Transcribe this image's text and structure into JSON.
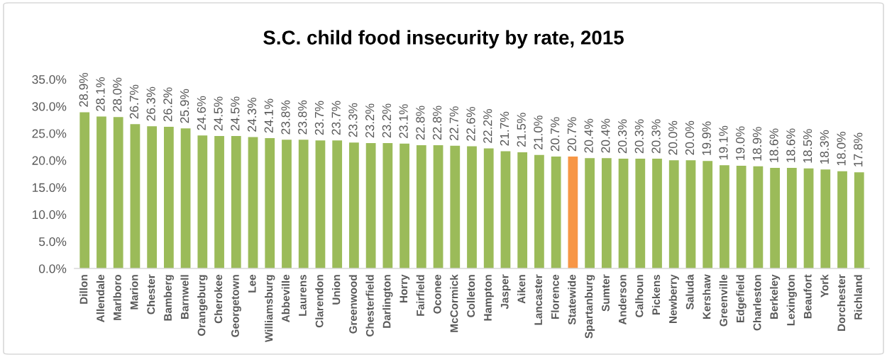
{
  "chart_data": {
    "type": "bar",
    "title": "S.C. child food insecurity by rate, 2015",
    "categories": [
      "Dillon",
      "Allendale",
      "Marlboro",
      "Marion",
      "Chester",
      "Bamberg",
      "Barnwell",
      "Orangeburg",
      "Cherokee",
      "Georgetown",
      "Lee",
      "Williamsburg",
      "Abbeville",
      "Laurens",
      "Clarendon",
      "Union",
      "Greenwood",
      "Chesterfield",
      "Darlington",
      "Horry",
      "Fairfield",
      "Oconee",
      "McCormick",
      "Colleton",
      "Hampton",
      "Jasper",
      "Aiken",
      "Lancaster",
      "Florence",
      "Statewide",
      "Spartanburg",
      "Sumter",
      "Anderson",
      "Calhoun",
      "Pickens",
      "Newberry",
      "Saluda",
      "Kershaw",
      "Greenville",
      "Edgefield",
      "Charleston",
      "Berkeley",
      "Lexington",
      "Beaufort",
      "York",
      "Dorchester",
      "Richland"
    ],
    "values": [
      28.9,
      28.1,
      28.0,
      26.7,
      26.3,
      26.2,
      25.9,
      24.6,
      24.5,
      24.5,
      24.3,
      24.1,
      23.8,
      23.8,
      23.7,
      23.7,
      23.3,
      23.2,
      23.2,
      23.1,
      22.8,
      22.8,
      22.7,
      22.6,
      22.2,
      21.7,
      21.5,
      21.0,
      20.7,
      20.7,
      20.4,
      20.4,
      20.3,
      20.3,
      20.3,
      20.0,
      20.0,
      19.9,
      19.1,
      19.0,
      18.9,
      18.6,
      18.6,
      18.5,
      18.3,
      18.0,
      17.8
    ],
    "colors": [
      "#9bbb59",
      "#9bbb59",
      "#9bbb59",
      "#9bbb59",
      "#9bbb59",
      "#9bbb59",
      "#9bbb59",
      "#9bbb59",
      "#9bbb59",
      "#9bbb59",
      "#9bbb59",
      "#9bbb59",
      "#9bbb59",
      "#9bbb59",
      "#9bbb59",
      "#9bbb59",
      "#9bbb59",
      "#9bbb59",
      "#9bbb59",
      "#9bbb59",
      "#9bbb59",
      "#9bbb59",
      "#9bbb59",
      "#9bbb59",
      "#9bbb59",
      "#9bbb59",
      "#9bbb59",
      "#9bbb59",
      "#9bbb59",
      "#f79646",
      "#9bbb59",
      "#9bbb59",
      "#9bbb59",
      "#9bbb59",
      "#9bbb59",
      "#9bbb59",
      "#9bbb59",
      "#9bbb59",
      "#9bbb59",
      "#9bbb59",
      "#9bbb59",
      "#9bbb59",
      "#9bbb59",
      "#9bbb59",
      "#9bbb59",
      "#9bbb59",
      "#9bbb59"
    ],
    "value_labels": [
      "28.9%",
      "28.1%",
      "28.0%",
      "26.7%",
      "26.3%",
      "26.2%",
      "25.9%",
      "24.6%",
      "24.5%",
      "24.5%",
      "24.3%",
      "24.1%",
      "23.8%",
      "23.8%",
      "23.7%",
      "23.7%",
      "23.3%",
      "23.2%",
      "23.2%",
      "23.1%",
      "22.8%",
      "22.8%",
      "22.7%",
      "22.6%",
      "22.2%",
      "21.7%",
      "21.5%",
      "21.0%",
      "20.7%",
      "20.7%",
      "20.4%",
      "20.4%",
      "20.3%",
      "20.3%",
      "20.3%",
      "20.0%",
      "20.0%",
      "19.9%",
      "19.1%",
      "19.0%",
      "18.9%",
      "18.6%",
      "18.6%",
      "18.5%",
      "18.3%",
      "18.0%",
      "17.8%"
    ],
    "ylim": [
      0,
      35
    ],
    "yticks": [
      {
        "value": 0,
        "label": "0.0%"
      },
      {
        "value": 5,
        "label": "5.0%"
      },
      {
        "value": 10,
        "label": "10.0%"
      },
      {
        "value": 15,
        "label": "15.0%"
      },
      {
        "value": 20,
        "label": "20.0%"
      },
      {
        "value": 25,
        "label": "25.0%"
      },
      {
        "value": 30,
        "label": "30.0%"
      },
      {
        "value": 35,
        "label": "35.0%"
      }
    ]
  }
}
